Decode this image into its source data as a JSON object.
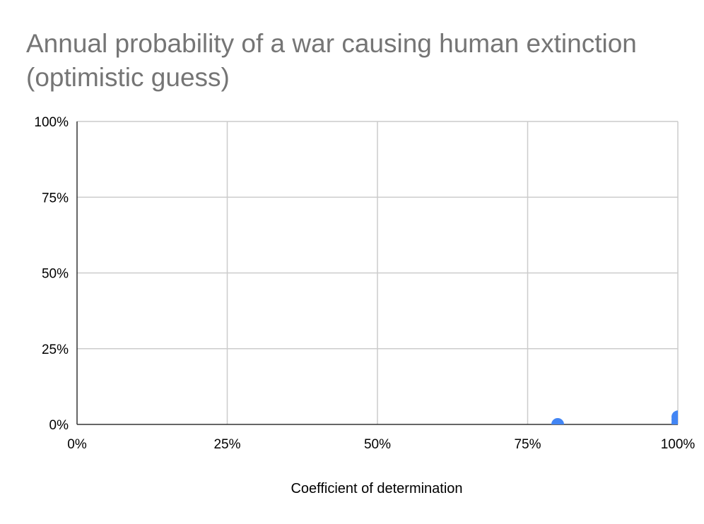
{
  "chart_data": {
    "type": "scatter",
    "title_lines": [
      "Annual probability of a war causing human extinction",
      "(optimistic guess)"
    ],
    "xlabel": "Coefficient of determination",
    "ylabel": "",
    "xlim": [
      0,
      1
    ],
    "ylim": [
      0,
      1
    ],
    "x_ticks": [
      {
        "value": 0,
        "label": "0%"
      },
      {
        "value": 0.25,
        "label": "25%"
      },
      {
        "value": 0.5,
        "label": "50%"
      },
      {
        "value": 0.75,
        "label": "75%"
      },
      {
        "value": 1,
        "label": "100%"
      }
    ],
    "y_ticks": [
      {
        "value": 0,
        "label": "0%"
      },
      {
        "value": 0.25,
        "label": "25%"
      },
      {
        "value": 0.5,
        "label": "50%"
      },
      {
        "value": 0.75,
        "label": "75%"
      },
      {
        "value": 1,
        "label": "100%"
      }
    ],
    "grid": true,
    "legend": "none",
    "series": [
      {
        "color": "#4285F4",
        "points": [
          {
            "x": 0.8,
            "y": 0.0
          },
          {
            "x": 1.0,
            "y": 0.025
          },
          {
            "x": 1.0,
            "y": 0.015
          },
          {
            "x": 1.0,
            "y": 0.005
          }
        ]
      }
    ],
    "colors": {
      "title": "#757575",
      "grid": "#cccccc",
      "axis": "#333333",
      "text": "#000000"
    }
  }
}
